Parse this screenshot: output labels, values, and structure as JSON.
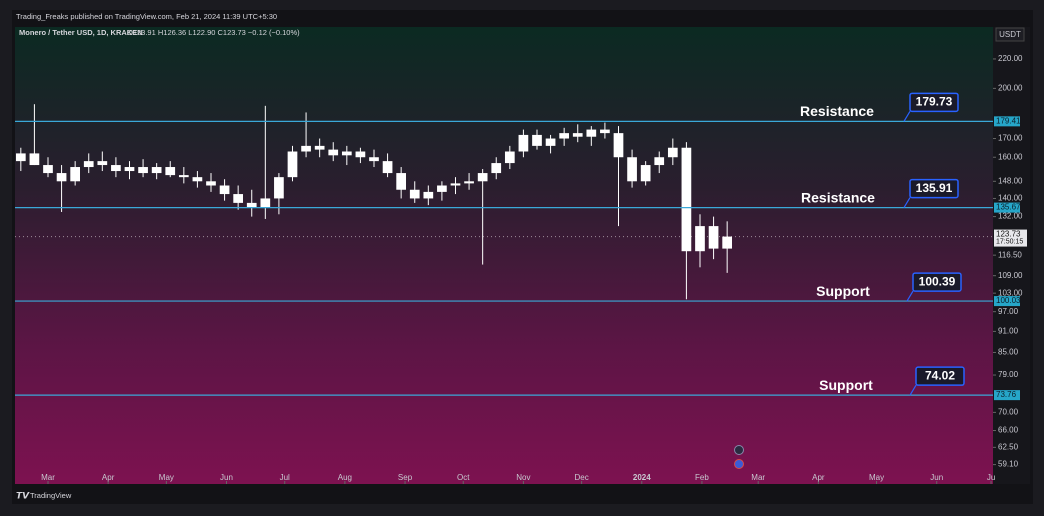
{
  "chart_data": {
    "type": "candlestick",
    "header": "Trading_Freaks published on TradingView.com, Feb 21, 2024 11:39 UTC+5:30",
    "symbol": "Monero / Tether USD, 1D, KRAKEN",
    "ohlc_text": "O123.91 H126.36 L122.90 C123.73 −0.12 (−0.10%)",
    "currency": "USDT",
    "footer": "TradingView",
    "color": "#ffffff",
    "log_scale": true,
    "ylim": [
      55.5,
      244
    ],
    "yticks": [
      {
        "value": 220,
        "label": "220.00"
      },
      {
        "value": 200,
        "label": "200.00"
      },
      {
        "value": 170,
        "label": "170.00"
      },
      {
        "value": 160,
        "label": "160.00"
      },
      {
        "value": 148,
        "label": "148.00"
      },
      {
        "value": 140,
        "label": "140.00"
      },
      {
        "value": 132,
        "label": "132.00"
      },
      {
        "value": 116.5,
        "label": "116.50"
      },
      {
        "value": 109,
        "label": "109.00"
      },
      {
        "value": 103,
        "label": "103.00"
      },
      {
        "value": 97,
        "label": "97.00"
      },
      {
        "value": 91,
        "label": "91.00"
      },
      {
        "value": 85,
        "label": "85.00"
      },
      {
        "value": 79,
        "label": "79.00"
      },
      {
        "value": 70,
        "label": "70.00"
      },
      {
        "value": 66,
        "label": "66.00"
      },
      {
        "value": 62.5,
        "label": "62.50"
      },
      {
        "value": 59.1,
        "label": "59.10"
      }
    ],
    "xlim": [
      -17,
      487
    ],
    "xticks": [
      {
        "value": 0,
        "label": "Mar"
      },
      {
        "value": 31,
        "label": "Apr"
      },
      {
        "value": 61,
        "label": "May"
      },
      {
        "value": 92,
        "label": "Jun"
      },
      {
        "value": 122,
        "label": "Jul"
      },
      {
        "value": 153,
        "label": "Aug"
      },
      {
        "value": 184,
        "label": "Sep"
      },
      {
        "value": 214,
        "label": "Oct"
      },
      {
        "value": 245,
        "label": "Nov"
      },
      {
        "value": 275,
        "label": "Dec"
      },
      {
        "value": 306,
        "label": "2024"
      },
      {
        "value": 337,
        "label": "Feb"
      },
      {
        "value": 366,
        "label": "Mar"
      },
      {
        "value": 397,
        "label": "Apr"
      },
      {
        "value": 427,
        "label": "May"
      },
      {
        "value": 458,
        "label": "Jun"
      },
      {
        "value": 486,
        "label": "Ju"
      }
    ],
    "x": [
      -14,
      -7,
      0,
      7,
      14,
      21,
      28,
      35,
      42,
      49,
      56,
      63,
      70,
      77,
      84,
      91,
      98,
      105,
      112,
      119,
      126,
      133,
      140,
      147,
      154,
      161,
      168,
      175,
      182,
      189,
      196,
      203,
      210,
      217,
      224,
      231,
      238,
      245,
      252,
      259,
      266,
      273,
      280,
      287,
      294,
      301,
      308,
      315,
      322,
      329,
      336,
      343,
      350
    ],
    "open": [
      158,
      162,
      156,
      152,
      148,
      155,
      158,
      156,
      153,
      155,
      152,
      155,
      151,
      150,
      148,
      146,
      142,
      138,
      136,
      140,
      150,
      163,
      166,
      164,
      161,
      163,
      160,
      158,
      152,
      144,
      140,
      143,
      146,
      147,
      148,
      152,
      157,
      163,
      172,
      166,
      170,
      173,
      171,
      175,
      173,
      160,
      148,
      156,
      160,
      165,
      118,
      128,
      119
    ],
    "high": [
      165,
      190,
      160,
      156,
      158,
      162,
      163,
      160,
      158,
      159,
      157,
      158,
      155,
      153,
      152,
      149,
      146,
      144,
      189,
      152,
      166,
      185,
      170,
      168,
      166,
      165,
      164,
      162,
      155,
      148,
      146,
      148,
      150,
      152,
      154,
      160,
      166,
      175,
      175,
      172,
      176,
      178,
      177,
      179,
      177,
      164,
      158,
      163,
      170,
      168,
      133,
      132,
      130
    ],
    "low": [
      153,
      156,
      150,
      134,
      146,
      152,
      153,
      150,
      149,
      150,
      149,
      150,
      147,
      145,
      143,
      139,
      135,
      132,
      131,
      133,
      148,
      160,
      160,
      158,
      156,
      157,
      155,
      150,
      140,
      138,
      137,
      139,
      142,
      144,
      113,
      149,
      154,
      160,
      164,
      162,
      166,
      168,
      166,
      170,
      128,
      145,
      146,
      152,
      156,
      101,
      112,
      115,
      110
    ],
    "close": [
      162,
      156,
      152,
      148,
      155,
      158,
      156,
      153,
      155,
      152,
      155,
      151,
      150,
      148,
      146,
      142,
      138,
      136,
      140,
      150,
      163,
      166,
      164,
      161,
      163,
      160,
      158,
      152,
      144,
      140,
      143,
      146,
      147,
      148,
      152,
      157,
      163,
      172,
      166,
      170,
      173,
      171,
      175,
      173,
      160,
      148,
      156,
      160,
      165,
      118,
      128,
      119,
      123.73
    ],
    "levels": [
      {
        "text": "Resistance",
        "value": 179.73,
        "axis_label": "179.41"
      },
      {
        "text": "Resistance",
        "value": 135.91,
        "axis_label": "135.67"
      },
      {
        "text": "Support",
        "value": 100.39,
        "axis_label": "100.03"
      },
      {
        "text": "Support",
        "value": 74.02,
        "axis_label": "73.76"
      }
    ],
    "last_price": {
      "value": 123.73,
      "countdown": "17:50:15"
    }
  }
}
